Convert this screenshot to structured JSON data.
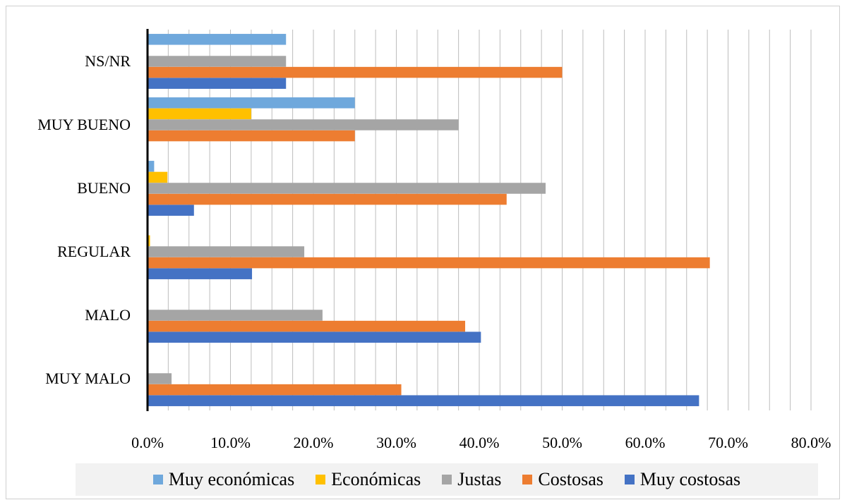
{
  "chart_data": {
    "type": "bar",
    "orientation": "horizontal",
    "categories": [
      "MUY MALO",
      "MALO",
      "REGULAR",
      "BUENO",
      "MUY BUENO",
      "NS/NR"
    ],
    "series": [
      {
        "name": "Muy económicas",
        "color": "#6fa8dc",
        "values": [
          0,
          0,
          0,
          0.8,
          25.0,
          16.7
        ]
      },
      {
        "name": "Económicas",
        "color": "#ffc000",
        "values": [
          0,
          0,
          0.3,
          2.4,
          12.5,
          0
        ]
      },
      {
        "name": "Justas",
        "color": "#a5a5a5",
        "values": [
          2.9,
          21.1,
          18.9,
          48.0,
          37.5,
          16.7
        ]
      },
      {
        "name": "Costosas",
        "color": "#ed7d31",
        "values": [
          30.6,
          38.3,
          67.8,
          43.3,
          25.0,
          50.0
        ]
      },
      {
        "name": "Muy costosas",
        "color": "#4472c4",
        "values": [
          66.5,
          40.2,
          12.6,
          5.6,
          0,
          16.7
        ]
      }
    ],
    "x_ticks": [
      "0.0%",
      "10.0%",
      "20.0%",
      "30.0%",
      "40.0%",
      "50.0%",
      "60.0%",
      "70.0%",
      "80.0%"
    ],
    "xlim": [
      0,
      80
    ],
    "unit": "%",
    "grid": "vertical",
    "legend_position": "bottom",
    "title": "",
    "xlabel": "",
    "ylabel": ""
  }
}
